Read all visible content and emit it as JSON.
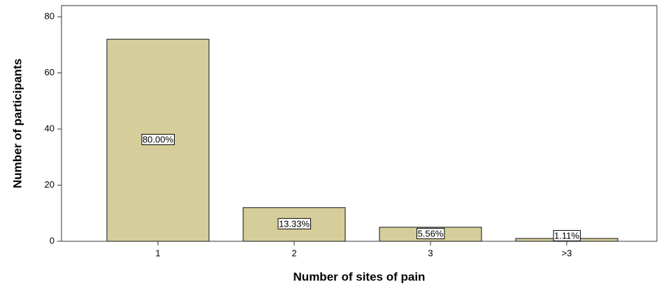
{
  "chart_data": {
    "type": "bar",
    "x_label": "Number of sites of pain",
    "y_label": "Number of participants",
    "categories": [
      "1",
      "2",
      "3",
      ">3"
    ],
    "values": [
      72,
      12,
      5,
      1
    ],
    "data_labels": [
      "80.00%",
      "13.33%",
      "5.56%",
      "1.11%"
    ],
    "color": "#d6ce9a",
    "ylim": [
      0,
      84
    ],
    "yticks": [
      0,
      20,
      40,
      60,
      80
    ],
    "grid": false
  }
}
